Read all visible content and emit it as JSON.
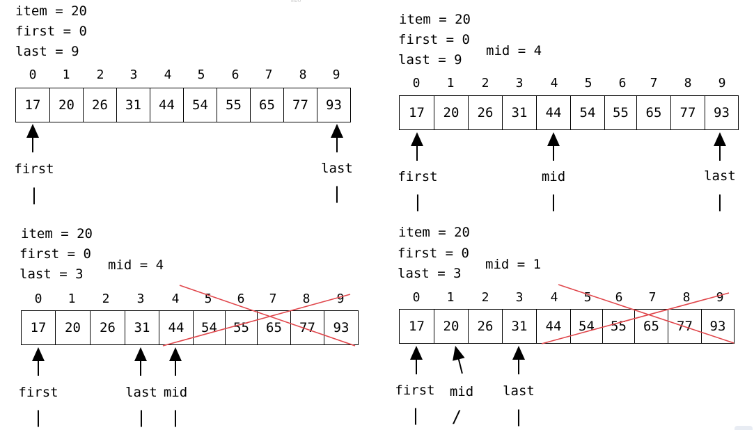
{
  "panels": [
    {
      "vars": [
        "item = 20",
        "first = 0",
        "last = 9"
      ],
      "mid_text": "",
      "indices": [
        "0",
        "1",
        "2",
        "3",
        "4",
        "5",
        "6",
        "7",
        "8",
        "9"
      ],
      "values": [
        "17",
        "20",
        "26",
        "31",
        "44",
        "54",
        "55",
        "65",
        "77",
        "93"
      ],
      "pointers": [
        {
          "label": "first",
          "tick": "|"
        },
        {
          "label": "last",
          "tick": "|"
        }
      ]
    },
    {
      "vars": [
        "item = 20",
        "first = 0",
        "last = 9"
      ],
      "mid_text": "mid = 4",
      "indices": [
        "0",
        "1",
        "2",
        "3",
        "4",
        "5",
        "6",
        "7",
        "8",
        "9"
      ],
      "values": [
        "17",
        "20",
        "26",
        "31",
        "44",
        "54",
        "55",
        "65",
        "77",
        "93"
      ],
      "pointers": [
        {
          "label": "first",
          "tick": "|"
        },
        {
          "label": "mid",
          "tick": "|"
        },
        {
          "label": "last",
          "tick": "|"
        }
      ]
    },
    {
      "vars": [
        "item = 20",
        "first = 0",
        "last = 3"
      ],
      "mid_text": "mid = 4",
      "indices": [
        "0",
        "1",
        "2",
        "3",
        "4",
        "5",
        "6",
        "7",
        "8",
        "9"
      ],
      "values": [
        "17",
        "20",
        "26",
        "31",
        "44",
        "54",
        "55",
        "65",
        "77",
        "93"
      ],
      "pointers": [
        {
          "label": "first",
          "tick": "|"
        },
        {
          "label": "last",
          "tick": "|"
        },
        {
          "label": "mid",
          "tick": "|"
        }
      ]
    },
    {
      "vars": [
        "item = 20",
        "first = 0",
        "last = 3"
      ],
      "mid_text": "mid = 1",
      "indices": [
        "0",
        "1",
        "2",
        "3",
        "4",
        "5",
        "6",
        "7",
        "8",
        "9"
      ],
      "values": [
        "17",
        "20",
        "26",
        "31",
        "44",
        "54",
        "55",
        "65",
        "77",
        "93"
      ],
      "pointers": [
        {
          "label": "first",
          "tick": "|"
        },
        {
          "label": "mid",
          "tick": "/"
        },
        {
          "label": "last",
          "tick": "|"
        }
      ]
    }
  ],
  "colors": {
    "strike": "#e0464b",
    "ink": "#000000"
  },
  "header_faint": "mbo"
}
